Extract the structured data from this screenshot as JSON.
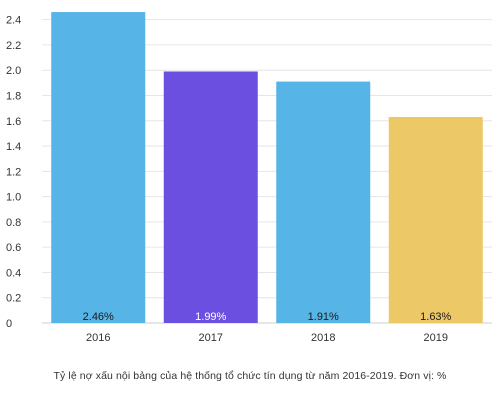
{
  "chart_data": {
    "type": "bar",
    "categories": [
      "2016",
      "2017",
      "2018",
      "2019"
    ],
    "values": [
      2.46,
      1.99,
      1.91,
      1.63
    ],
    "data_labels": [
      "2.46%",
      "1.99%",
      "1.91%",
      "1.63%"
    ],
    "bar_colors": [
      "#56b4e6",
      "#6b4fe0",
      "#56b4e6",
      "#ecc867"
    ],
    "label_colors": [
      "#1a1a1a",
      "#ffffff",
      "#1a1a1a",
      "#1a1a1a"
    ],
    "y_ticks": [
      "0",
      "0.2",
      "0.4",
      "0.6",
      "0.8",
      "1.0",
      "1.2",
      "1.4",
      "1.6",
      "1.8",
      "2.0",
      "2.2",
      "2.4"
    ],
    "ylim": [
      0,
      2.5
    ],
    "grid": true,
    "caption": "Tỷ lệ nợ xấu nội bảng của hệ thống tổ chức tín dụng từ năm 2016-2019. Đơn vị: %"
  }
}
